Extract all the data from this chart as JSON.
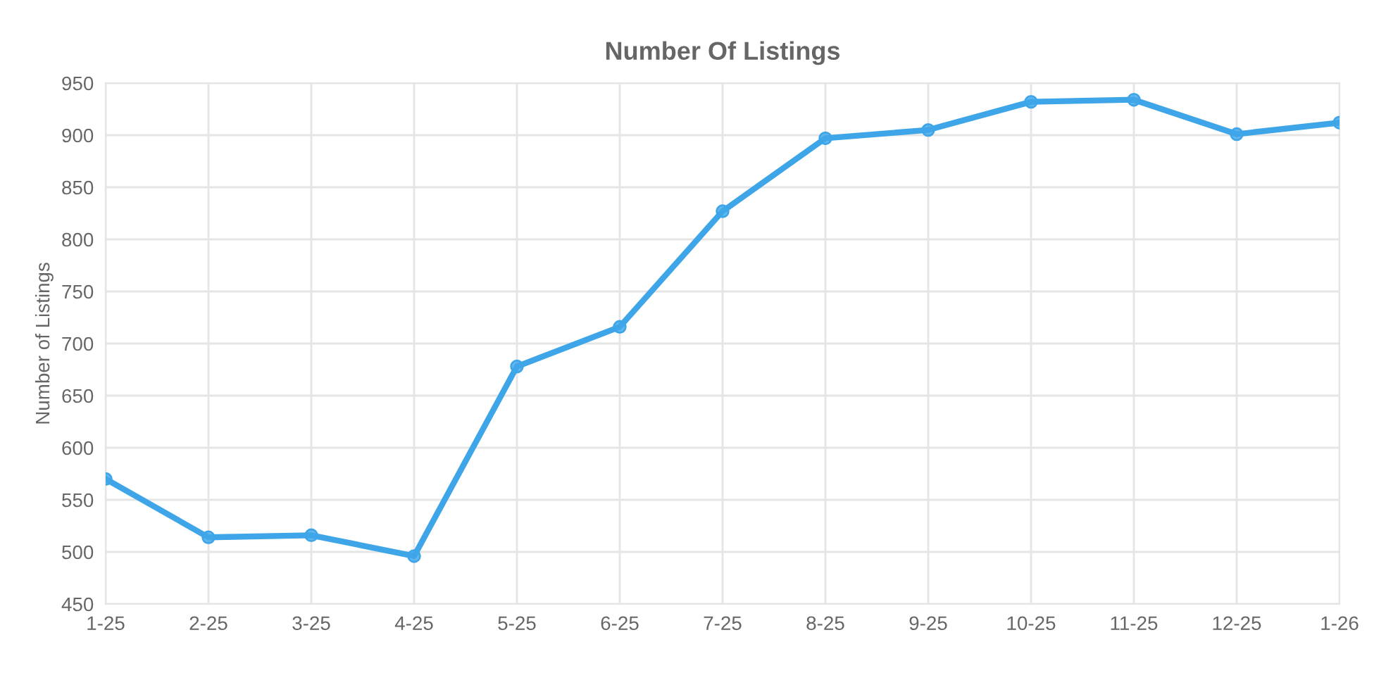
{
  "chart_data": {
    "type": "line",
    "title": "Number Of Listings",
    "ylabel": "Number of Listings",
    "categories": [
      "1-25",
      "2-25",
      "3-25",
      "4-25",
      "5-25",
      "6-25",
      "7-25",
      "8-25",
      "9-25",
      "10-25",
      "11-25",
      "12-25",
      "1-26"
    ],
    "series": [
      {
        "color": "#3ea6e8",
        "values": [
          570,
          514,
          516,
          496,
          678,
          716,
          827,
          897,
          905,
          932,
          934,
          901,
          912
        ]
      }
    ],
    "ylim": [
      450,
      950
    ],
    "yticks": [
      450,
      500,
      550,
      600,
      650,
      700,
      750,
      800,
      850,
      900,
      950
    ],
    "grid": true,
    "legend": false,
    "marker": "circle",
    "line_style": "solid"
  }
}
